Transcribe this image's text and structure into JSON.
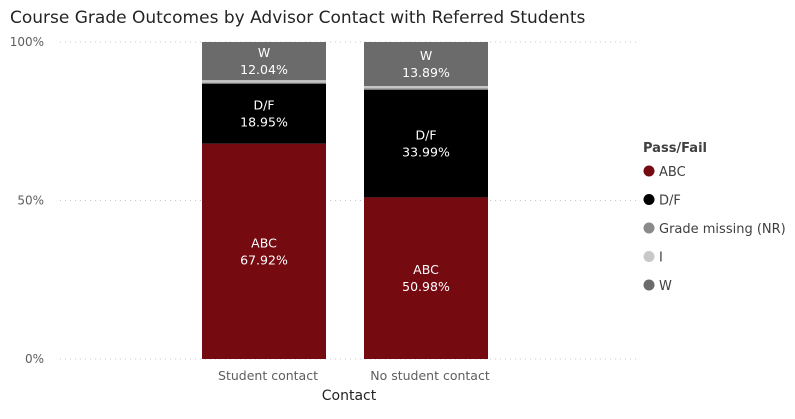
{
  "chart_data": {
    "type": "stacked-bar-100",
    "title": "Course Grade Outcomes by Advisor Contact with Referred Students",
    "xlabel": "Contact",
    "ylabel": "",
    "ylim": [
      0,
      100
    ],
    "yticks": [
      "0%",
      "50%",
      "100%"
    ],
    "grid": true,
    "categories": [
      "Student contact",
      "No student contact"
    ],
    "legend": {
      "title": "Pass/Fail",
      "placement": "right",
      "items": [
        "ABC",
        "D/F",
        "Grade missing (NR)",
        "I",
        "W"
      ]
    },
    "series": [
      {
        "name": "ABC",
        "color": "#750a11",
        "values": [
          67.92,
          50.98
        ],
        "labels": [
          "67.92%",
          "50.98%"
        ]
      },
      {
        "name": "D/F",
        "color": "#000000",
        "values": [
          18.95,
          33.99
        ],
        "labels": [
          "18.95%",
          "33.99%"
        ]
      },
      {
        "name": "Grade missing (NR)",
        "color": "#9a9a9a",
        "values": [
          0.4,
          0.5
        ],
        "labels": [
          "",
          ""
        ]
      },
      {
        "name": "I",
        "color": "#c8c8c8",
        "values": [
          0.69,
          0.64
        ],
        "labels": [
          "",
          ""
        ]
      },
      {
        "name": "W",
        "color": "#6b6b6b",
        "values": [
          12.04,
          13.89
        ],
        "labels": [
          "12.04%",
          "13.89%"
        ]
      }
    ],
    "legend_colors": [
      "#750a11",
      "#000000",
      "#8a8a8a",
      "#c8c8c8",
      "#6b6b6b"
    ]
  }
}
